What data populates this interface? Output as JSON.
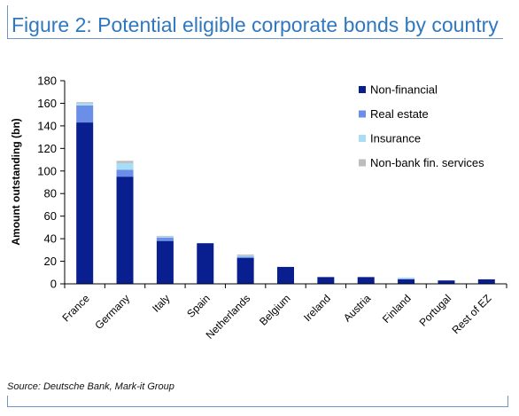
{
  "figure": {
    "title": "Figure 2: Potential eligible corporate bonds by country",
    "source": "Source: Deutsche Bank, Mark-it Group"
  },
  "chart_data": {
    "type": "bar",
    "stacked": true,
    "title": "",
    "xlabel": "",
    "ylabel": "Amount outstanding (bn)",
    "ylim": [
      0,
      180
    ],
    "yticks": [
      0,
      20,
      40,
      60,
      80,
      100,
      120,
      140,
      160,
      180
    ],
    "grid": false,
    "legend_position": "top-right",
    "categories": [
      "France",
      "Germany",
      "Italy",
      "Spain",
      "Netherlands",
      "Belgium",
      "Ireland",
      "Austria",
      "Finland",
      "Portugal",
      "Rest of EZ"
    ],
    "series": [
      {
        "name": "Non-financial",
        "color": "#0a1f8f",
        "values": [
          143,
          95,
          38,
          36,
          23,
          15,
          6,
          6,
          4,
          3,
          4
        ]
      },
      {
        "name": "Real estate",
        "color": "#6b8ee8",
        "values": [
          15,
          6,
          3,
          0,
          1,
          0,
          0,
          0,
          0.5,
          0,
          0
        ]
      },
      {
        "name": "Insurance",
        "color": "#a9dcf5",
        "values": [
          2,
          6,
          1,
          0,
          1,
          0,
          0,
          0,
          1,
          0,
          0
        ]
      },
      {
        "name": "Non-bank fin. services",
        "color": "#bdbdbd",
        "values": [
          1,
          2,
          0.5,
          0,
          1,
          0,
          0,
          0,
          0,
          0,
          0
        ]
      }
    ]
  }
}
